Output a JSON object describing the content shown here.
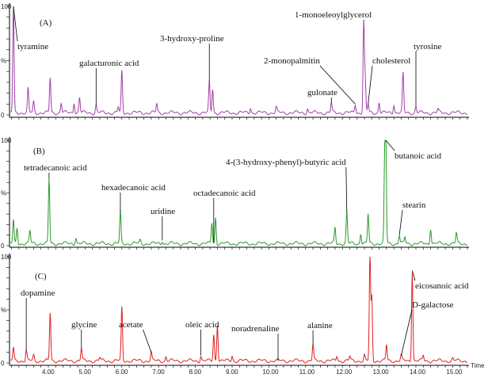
{
  "chart_data": {
    "type": "line",
    "xlabel": "Time",
    "x_range": [
      2.95,
      15.4
    ],
    "x_ticks": [
      "4.00",
      "5.00",
      "6.00",
      "7.00",
      "8.00",
      "9.00",
      "10.00",
      "11.00",
      "12.00",
      "13.00",
      "14.00",
      "15.00"
    ],
    "y_tick_labels": [
      "100",
      "%",
      "0"
    ],
    "panels": [
      {
        "title": "(A)",
        "color": "#a040a8",
        "peaks": [
          [
            3.05,
            100
          ],
          [
            3.45,
            22
          ],
          [
            3.6,
            10
          ],
          [
            4.05,
            32
          ],
          [
            4.35,
            9
          ],
          [
            4.7,
            10
          ],
          [
            4.85,
            14
          ],
          [
            5.3,
            7
          ],
          [
            5.9,
            5
          ],
          [
            6.0,
            38
          ],
          [
            6.95,
            8
          ],
          [
            8.38,
            28
          ],
          [
            8.47,
            22
          ],
          [
            9.5,
            5
          ],
          [
            10.2,
            5
          ],
          [
            11.05,
            4
          ],
          [
            11.7,
            9
          ],
          [
            12.35,
            8
          ],
          [
            12.58,
            82
          ],
          [
            12.62,
            30
          ],
          [
            12.7,
            8
          ],
          [
            13.0,
            10
          ],
          [
            13.4,
            8
          ],
          [
            13.65,
            36
          ],
          [
            14.0,
            6
          ],
          [
            14.6,
            3
          ]
        ],
        "annotations": [
          {
            "text": "tyramine",
            "t": 3.05
          },
          {
            "text": "galacturonic acid",
            "t": 5.3
          },
          {
            "text": "3-hydroxy-proline",
            "t": 8.38
          },
          {
            "text": "gulonate",
            "t": 11.7
          },
          {
            "text": "2-monopalmitin",
            "t": 12.35
          },
          {
            "text": "1-monoeleoylglycerol",
            "t": 12.58
          },
          {
            "text": "cholesterol",
            "t": 12.7
          },
          {
            "text": "tyrosine",
            "t": 14.0
          }
        ]
      },
      {
        "title": "(B)",
        "color": "#2a9a2a",
        "peaks": [
          [
            3.05,
            22
          ],
          [
            3.15,
            15
          ],
          [
            3.5,
            12
          ],
          [
            4.02,
            62
          ],
          [
            4.75,
            6
          ],
          [
            5.96,
            30
          ],
          [
            6.5,
            3
          ],
          [
            7.1,
            3
          ],
          [
            8.45,
            20
          ],
          [
            8.55,
            25
          ],
          [
            11.8,
            15
          ],
          [
            12.12,
            30
          ],
          [
            12.5,
            10
          ],
          [
            12.7,
            28
          ],
          [
            13.15,
            70
          ],
          [
            13.18,
            100
          ],
          [
            13.55,
            8
          ],
          [
            13.7,
            6
          ],
          [
            14.4,
            15
          ],
          [
            15.1,
            10
          ]
        ],
        "annotations": [
          {
            "text": "tetradecanoic acid",
            "t": 4.02
          },
          {
            "text": "hexadecanoic acid",
            "t": 5.96
          },
          {
            "text": "uridine",
            "t": 7.1
          },
          {
            "text": "octadecanoic acid",
            "t": 8.5
          },
          {
            "text": "4-(3-hydroxy-phenyl)-butyric acid",
            "t": 12.12
          },
          {
            "text": "butanoic acid",
            "t": 13.18
          },
          {
            "text": "stearin",
            "t": 13.55
          }
        ]
      },
      {
        "title": "(C)",
        "color": "#e02020",
        "peaks": [
          [
            3.05,
            12
          ],
          [
            3.4,
            10
          ],
          [
            3.6,
            5
          ],
          [
            4.05,
            45
          ],
          [
            4.9,
            12
          ],
          [
            5.4,
            3
          ],
          [
            6.0,
            50
          ],
          [
            6.8,
            8
          ],
          [
            7.2,
            4
          ],
          [
            8.15,
            5
          ],
          [
            8.5,
            25
          ],
          [
            8.6,
            35
          ],
          [
            9.0,
            5
          ],
          [
            11.2,
            15
          ],
          [
            11.85,
            5
          ],
          [
            12.2,
            4
          ],
          [
            12.6,
            5
          ],
          [
            12.75,
            100
          ],
          [
            12.8,
            60
          ],
          [
            13.2,
            15
          ],
          [
            13.6,
            5
          ],
          [
            13.9,
            85
          ],
          [
            14.2,
            5
          ],
          [
            15.0,
            2
          ]
        ],
        "annotations": [
          {
            "text": "dopamine",
            "t": 3.4
          },
          {
            "text": "glycine",
            "t": 4.9
          },
          {
            "text": "acetate",
            "t": 6.8
          },
          {
            "text": "oleic acid",
            "t": 8.15
          },
          {
            "text": "noradrenaline",
            "t": 10.25
          },
          {
            "text": "alanine",
            "t": 11.2
          },
          {
            "text": "eicosanoic acid",
            "t": 13.9
          },
          {
            "text": "D-galactose",
            "t": 13.6
          }
        ]
      }
    ]
  }
}
